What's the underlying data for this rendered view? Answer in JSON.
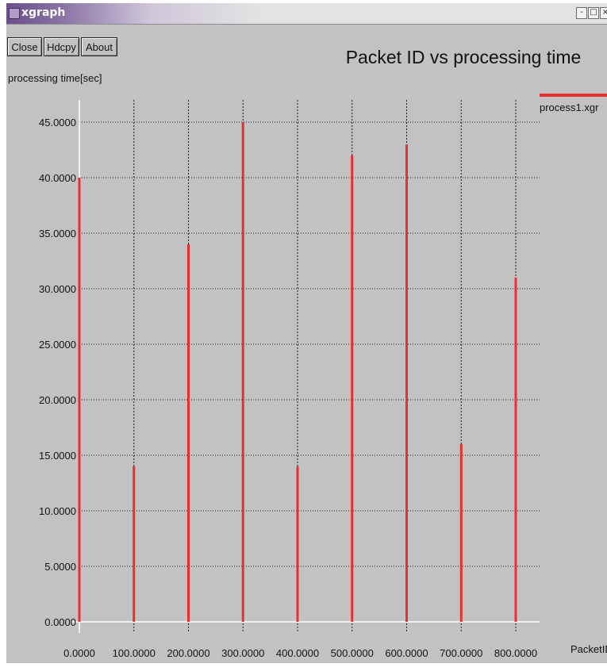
{
  "window": {
    "title": "xgraph",
    "controls": [
      "-",
      "□",
      "×"
    ]
  },
  "toolbar": {
    "close_label": "Close",
    "hdcpy_label": "Hdcpy",
    "about_label": "About"
  },
  "colors": {
    "background": "#c2c2c2",
    "series": "#e83030",
    "grid": "#1a1a1a",
    "axis": "#ffffff"
  },
  "chart_data": {
    "type": "bar",
    "title": "Packet ID vs processing time",
    "xlabel": "PacketID",
    "ylabel": "processing time[sec]",
    "xlim": [
      0,
      800
    ],
    "ylim": [
      0,
      45
    ],
    "x_ticks": [
      "0.0000",
      "100.0000",
      "200.0000",
      "300.0000",
      "400.0000",
      "500.0000",
      "600.0000",
      "700.0000",
      "800.0000"
    ],
    "y_ticks": [
      "0.0000",
      "5.0000",
      "10.0000",
      "15.0000",
      "20.0000",
      "25.0000",
      "30.0000",
      "35.0000",
      "40.0000",
      "45.0000"
    ],
    "grid": true,
    "legend": "top-right",
    "series": [
      {
        "name": "process1.xgr",
        "x": [
          0,
          100,
          200,
          300,
          400,
          500,
          600,
          700,
          800
        ],
        "values": [
          40,
          14,
          34,
          45,
          14,
          42,
          43,
          16,
          31
        ]
      }
    ]
  }
}
